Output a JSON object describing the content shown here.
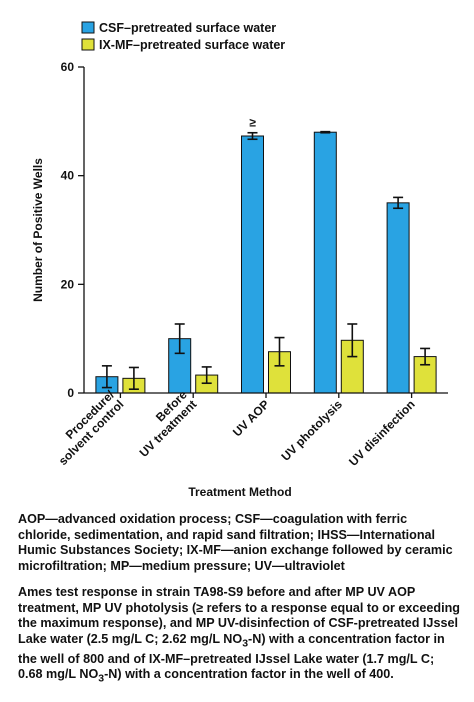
{
  "chart_data": {
    "type": "bar",
    "categories": [
      [
        "Procedure/",
        "solvent control"
      ],
      [
        "Before",
        "UV treatment"
      ],
      [
        "UV AOP"
      ],
      [
        "UV photolysis"
      ],
      [
        "UV disinfection"
      ]
    ],
    "series": [
      {
        "name": "CSF–pretreated surface water",
        "color": "#29a3e3",
        "values": [
          3.0,
          10.0,
          47.3,
          48.0,
          35.0
        ],
        "errors": [
          2.0,
          2.7,
          0.6,
          0.1,
          1.0
        ],
        "annotations": [
          "",
          "",
          "≥",
          "",
          ""
        ]
      },
      {
        "name": "IX-MF–pretreated surface water",
        "color": "#dfe13a",
        "values": [
          2.7,
          3.3,
          7.6,
          9.7,
          6.7
        ],
        "errors": [
          2.0,
          1.5,
          2.6,
          3.0,
          1.5
        ]
      }
    ],
    "xlabel": "Treatment Method",
    "ylabel": "Number of Positive Wells",
    "ylim": [
      0,
      60
    ],
    "yticks": [
      0,
      20,
      40,
      60
    ],
    "grid": false,
    "legend": "top-left"
  },
  "caption": {
    "abbreviations": "AOP—advanced oxidation process; CSF—coagulation with ferric chloride, sedimentation, and rapid sand filtration; IHSS—International Humic Substances Society; IX-MF—anion exchange followed by ceramic microfiltration; MP—medium pressure; UV—ultraviolet",
    "description_part1": "Ames test response in strain TA98-S9 before and after MP UV AOP treatment, MP UV photolysis (≥ refers to a response equal to or exceeding the maximum response), and MP UV-disinfection of CSF-pretreated IJssel Lake water (2.5 mg/L C; 2.62 mg/L NO",
    "sub1": "3",
    "description_part2": "-N) with a concentration factor in the well of 800 and of IX-MF–pretreated IJssel Lake water (1.7 mg/L C; 0.68 mg/L NO",
    "sub2": "3",
    "description_part3": "-N) with a concentration factor in the well of 400."
  }
}
